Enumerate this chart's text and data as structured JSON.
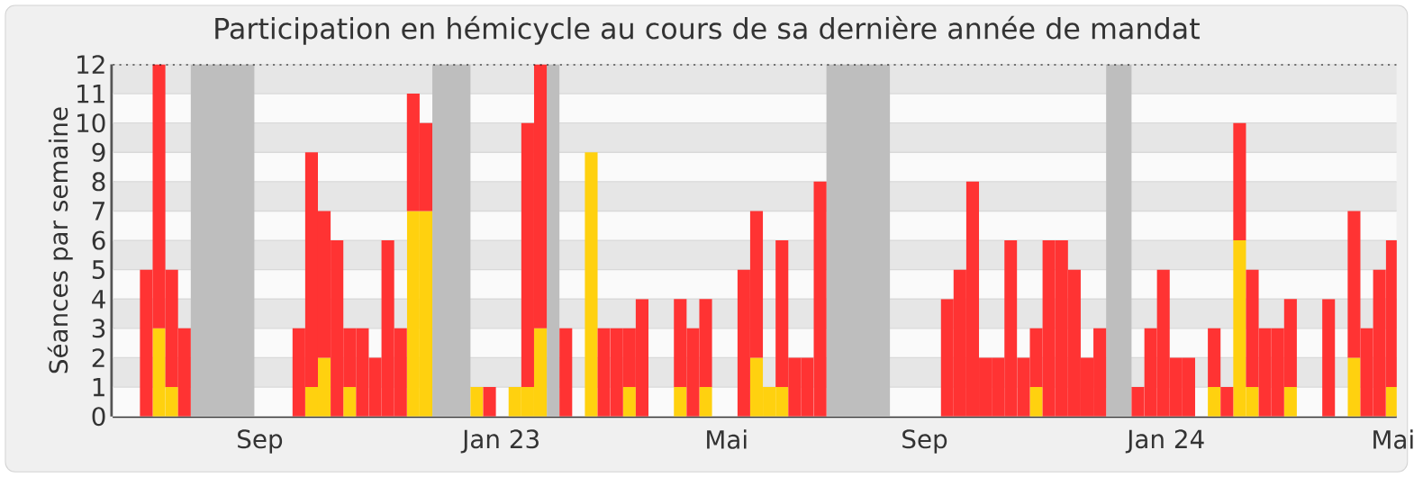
{
  "chart_data": {
    "type": "bar",
    "stacked": true,
    "title": "Participation en hémicycle au cours de sa dernière année de mandat",
    "ylabel": "Séances par semaine",
    "x": [
      "2022-06-27",
      "2022-07-04",
      "2022-07-11",
      "2022-07-18",
      "2022-07-25",
      "2022-08-01",
      "2022-08-08",
      "2022-08-15",
      "2022-08-22",
      "2022-08-29",
      "2022-09-05",
      "2022-09-12",
      "2022-09-19",
      "2022-09-26",
      "2022-10-03",
      "2022-10-10",
      "2022-10-17",
      "2022-10-24",
      "2022-10-31",
      "2022-11-07",
      "2022-11-14",
      "2022-11-21",
      "2022-11-28",
      "2022-12-05",
      "2022-12-12",
      "2022-12-19",
      "2022-12-26",
      "2023-01-02",
      "2023-01-09",
      "2023-01-16",
      "2023-01-23",
      "2023-01-30",
      "2023-02-06",
      "2023-02-13",
      "2023-02-20",
      "2023-02-27",
      "2023-03-06",
      "2023-03-13",
      "2023-03-20",
      "2023-03-27",
      "2023-04-03",
      "2023-04-10",
      "2023-04-17",
      "2023-04-24",
      "2023-05-01",
      "2023-05-08",
      "2023-05-15",
      "2023-05-22",
      "2023-05-29",
      "2023-06-05",
      "2023-06-12",
      "2023-06-19",
      "2023-06-26",
      "2023-07-03",
      "2023-07-10",
      "2023-07-17",
      "2023-07-24",
      "2023-07-31",
      "2023-08-07",
      "2023-08-14",
      "2023-08-21",
      "2023-08-28",
      "2023-09-04",
      "2023-09-11",
      "2023-09-18",
      "2023-09-25",
      "2023-10-02",
      "2023-10-09",
      "2023-10-16",
      "2023-10-23",
      "2023-10-30",
      "2023-11-06",
      "2023-11-13",
      "2023-11-20",
      "2023-11-27",
      "2023-12-04",
      "2023-12-11",
      "2023-12-18",
      "2023-12-25",
      "2024-01-01",
      "2024-01-08",
      "2024-01-15",
      "2024-01-22",
      "2024-01-29",
      "2024-02-05",
      "2024-02-12",
      "2024-02-19",
      "2024-02-26",
      "2024-03-04",
      "2024-03-11",
      "2024-03-18",
      "2024-03-25",
      "2024-04-01",
      "2024-04-08",
      "2024-04-15",
      "2024-04-22",
      "2024-04-29",
      "2024-05-06",
      "2024-05-13"
    ],
    "series": [
      {
        "color": "#ffd10f",
        "values": [
          0,
          3,
          1,
          0,
          0,
          0,
          0,
          0,
          0,
          0,
          0,
          0,
          0,
          1,
          2,
          0,
          1,
          0,
          0,
          0,
          0,
          7,
          7,
          0,
          0,
          0,
          1,
          0,
          0,
          1,
          1,
          3,
          0,
          0,
          0,
          9,
          0,
          0,
          1,
          0,
          0,
          0,
          1,
          0,
          1,
          0,
          0,
          0,
          2,
          1,
          1,
          0,
          0,
          0,
          0,
          0,
          0,
          0,
          0,
          0,
          0,
          0,
          0,
          0,
          0,
          0,
          0,
          0,
          0,
          0,
          1,
          0,
          0,
          0,
          0,
          0,
          0,
          0,
          0,
          0,
          0,
          0,
          0,
          0,
          1,
          0,
          6,
          1,
          0,
          0,
          1,
          0,
          0,
          0,
          0,
          2,
          0,
          0,
          1
        ]
      },
      {
        "color": "#ff3333",
        "values": [
          5,
          9,
          4,
          3,
          0,
          0,
          0,
          0,
          0,
          0,
          0,
          0,
          3,
          8,
          5,
          6,
          2,
          3,
          2,
          6,
          3,
          4,
          3,
          0,
          0,
          0,
          0,
          1,
          0,
          0,
          9,
          9,
          0,
          3,
          0,
          0,
          3,
          3,
          2,
          4,
          0,
          0,
          3,
          3,
          3,
          0,
          0,
          5,
          5,
          0,
          5,
          2,
          2,
          8,
          0,
          0,
          0,
          0,
          0,
          0,
          0,
          0,
          0,
          4,
          5,
          8,
          2,
          2,
          6,
          2,
          2,
          6,
          6,
          5,
          2,
          3,
          0,
          0,
          1,
          3,
          5,
          2,
          2,
          0,
          2,
          1,
          4,
          4,
          3,
          3,
          3,
          0,
          0,
          4,
          0,
          5,
          3,
          5,
          5
        ]
      }
    ],
    "xlim": [
      "2022-06-12",
      "2024-05-19"
    ],
    "xticks": [
      {
        "value": "2022-09-01",
        "label": "Sep"
      },
      {
        "value": "2023-01-12",
        "label": "Jan 23"
      },
      {
        "value": "2023-05-16",
        "label": "Mai"
      },
      {
        "value": "2023-09-02",
        "label": "Sep"
      },
      {
        "value": "2024-01-13",
        "label": "Jan 24"
      },
      {
        "value": "2024-05-17",
        "label": "Mai"
      }
    ],
    "ylim": [
      0,
      12
    ],
    "yticks": [
      0,
      1,
      2,
      3,
      4,
      5,
      6,
      7,
      8,
      9,
      10,
      11,
      12
    ],
    "grid": "y",
    "bands": [
      {
        "axis": "x",
        "from": "2022-07-25",
        "to": "2022-08-29",
        "color": "#bebebe"
      },
      {
        "axis": "x",
        "from": "2022-12-05",
        "to": "2022-12-26",
        "color": "#bebebe"
      },
      {
        "axis": "x",
        "from": "2023-02-06",
        "to": "2023-02-13",
        "color": "#bebebe"
      },
      {
        "axis": "x",
        "from": "2023-07-10",
        "to": "2023-08-14",
        "color": "#bebebe"
      },
      {
        "axis": "x",
        "from": "2023-12-11",
        "to": "2023-12-25",
        "color": "#bebebe"
      }
    ],
    "ref_lines": [
      {
        "axis": "y",
        "value": 12,
        "color": "#000000",
        "line_style": "dotted"
      }
    ]
  }
}
